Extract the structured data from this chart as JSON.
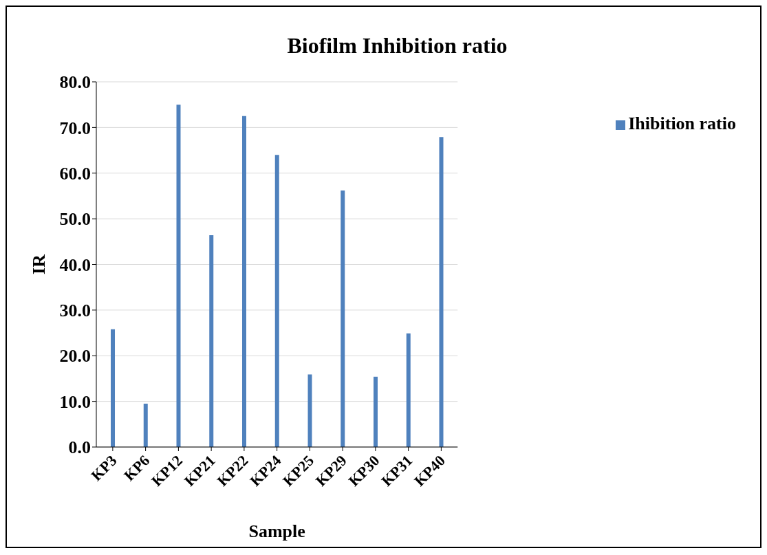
{
  "chart_data": {
    "type": "bar",
    "title": "Biofilm Inhibition ratio",
    "xlabel": "Sample",
    "ylabel": "IR",
    "categories": [
      "KP3",
      "KP6",
      "KP12",
      "KP21",
      "KP22",
      "KP24",
      "KP25",
      "KP29",
      "KP30",
      "KP31",
      "KP40"
    ],
    "series": [
      {
        "name": "Ihibition ratio",
        "color": "#4f81bd",
        "values": [
          25.8,
          9.5,
          75.0,
          46.4,
          72.5,
          64.0,
          15.9,
          56.2,
          15.4,
          24.9,
          67.9
        ]
      }
    ],
    "ylim": [
      0,
      80
    ],
    "yticks": [
      {
        "value": 0,
        "label": "0.0"
      },
      {
        "value": 10,
        "label": "10.0"
      },
      {
        "value": 20,
        "label": "20.0"
      },
      {
        "value": 30,
        "label": "30.0"
      },
      {
        "value": 40,
        "label": "40.0"
      },
      {
        "value": 50,
        "label": "50.0"
      },
      {
        "value": 60,
        "label": "60.0"
      },
      {
        "value": 70,
        "label": "70.0"
      },
      {
        "value": 80,
        "label": "80.0"
      }
    ],
    "grid": "y",
    "legend": "right"
  }
}
